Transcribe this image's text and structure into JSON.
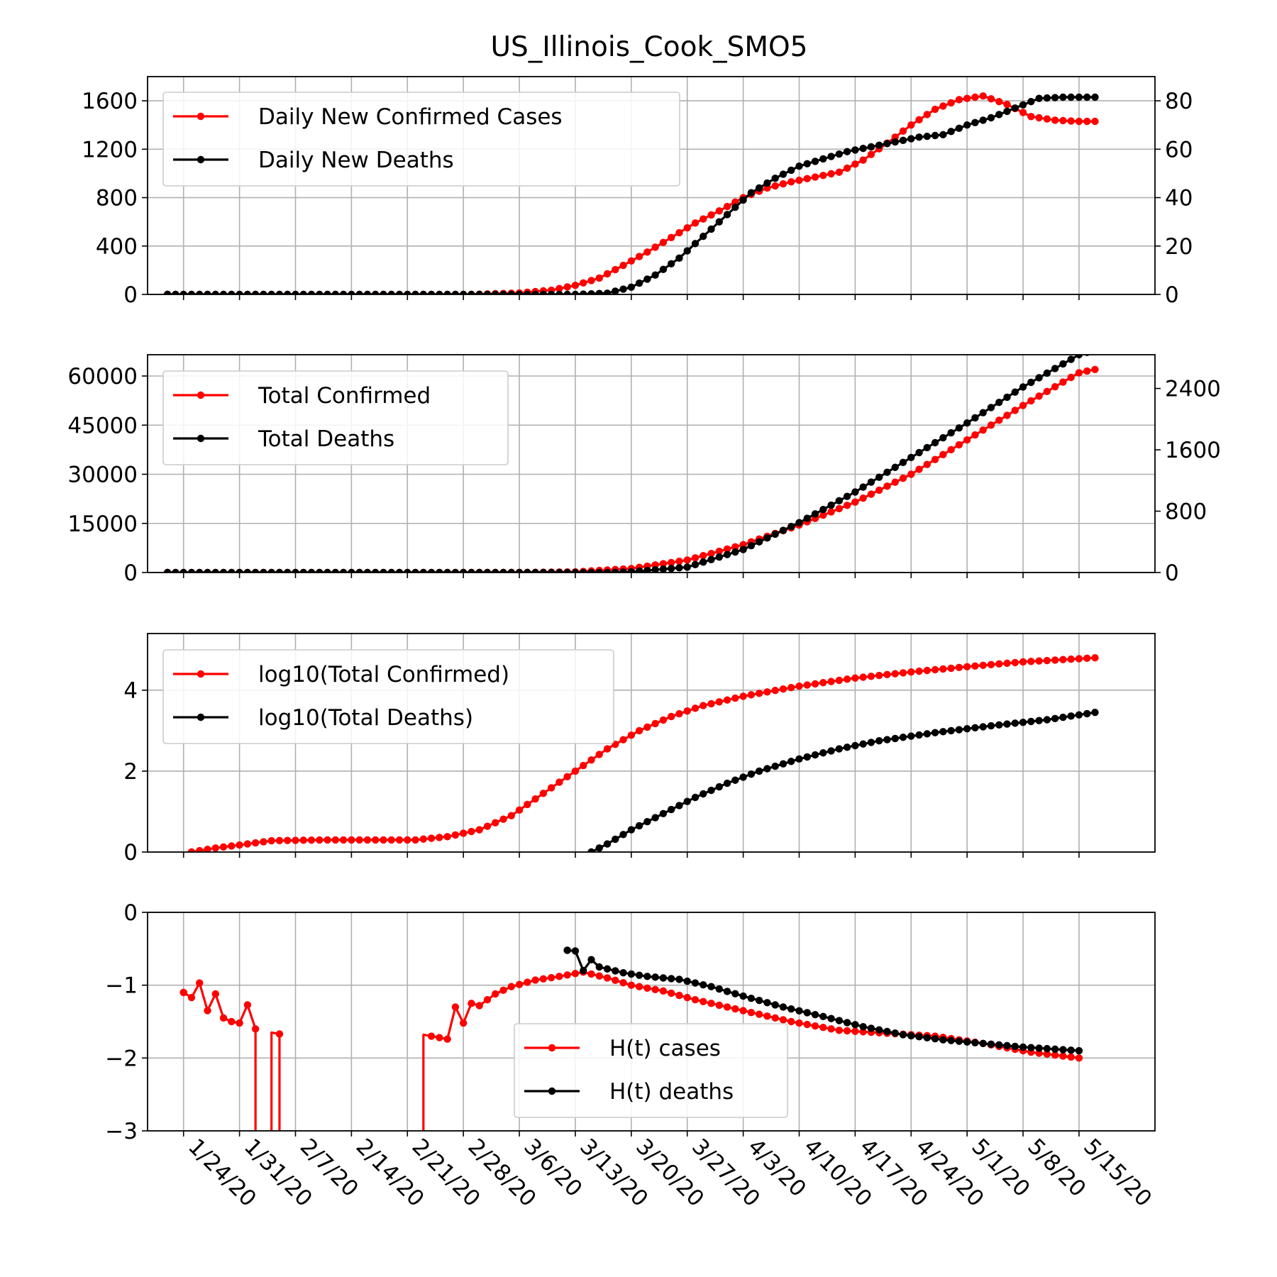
{
  "title": "US_Illinois_Cook_SMO5",
  "x_tick_labels": [
    "1/24/20",
    "1/31/20",
    "2/7/20",
    "2/14/20",
    "2/21/20",
    "2/28/20",
    "3/6/20",
    "3/13/20",
    "3/20/20",
    "3/27/20",
    "4/3/20",
    "4/10/20",
    "4/17/20",
    "4/24/20",
    "5/1/20",
    "5/8/20",
    "5/15/20"
  ],
  "colors": {
    "cases": "#ff0000",
    "deaths": "#000000",
    "grid": "#b0b0b0"
  },
  "chart_data": [
    {
      "type": "line",
      "x_start_date": "1/22/20",
      "x_end_date": "5/17/20",
      "legend_position": "upper-left",
      "grid": true,
      "left_axis": {
        "ylim": [
          0,
          1800
        ],
        "ticks": [
          0,
          400,
          800,
          1200,
          1600
        ],
        "tick_labels": [
          "0",
          "400",
          "800",
          "1200",
          "1600"
        ]
      },
      "right_axis": {
        "ylim": [
          0,
          90
        ],
        "ticks": [
          0,
          20,
          40,
          60,
          80
        ],
        "tick_labels": [
          "0",
          "20",
          "40",
          "60",
          "80"
        ]
      },
      "series": [
        {
          "name": "Daily New Confirmed Cases",
          "color": "#ff0000",
          "axis": "left",
          "points": [
            [
              "1/22/20",
              0
            ],
            [
              "2/29/20",
              0
            ],
            [
              "3/6/20",
              12
            ],
            [
              "3/10/20",
              35
            ],
            [
              "3/13/20",
              75
            ],
            [
              "3/16/20",
              135
            ],
            [
              "3/19/20",
              240
            ],
            [
              "3/22/20",
              350
            ],
            [
              "3/25/20",
              470
            ],
            [
              "3/28/20",
              590
            ],
            [
              "3/31/20",
              690
            ],
            [
              "4/3/20",
              800
            ],
            [
              "4/6/20",
              880
            ],
            [
              "4/9/20",
              930
            ],
            [
              "4/12/20",
              970
            ],
            [
              "4/15/20",
              1010
            ],
            [
              "4/18/20",
              1110
            ],
            [
              "4/21/20",
              1250
            ],
            [
              "4/24/20",
              1400
            ],
            [
              "4/27/20",
              1530
            ],
            [
              "4/30/20",
              1610
            ],
            [
              "5/3/20",
              1640
            ],
            [
              "5/6/20",
              1570
            ],
            [
              "5/9/20",
              1470
            ],
            [
              "5/12/20",
              1440
            ],
            [
              "5/15/20",
              1430
            ],
            [
              "5/17/20",
              1430
            ]
          ]
        },
        {
          "name": "Daily New Deaths",
          "color": "#000000",
          "axis": "right",
          "points": [
            [
              "1/22/20",
              0
            ],
            [
              "3/13/20",
              0
            ],
            [
              "3/17/20",
              0.5
            ],
            [
              "3/20/20",
              3
            ],
            [
              "3/23/20",
              8
            ],
            [
              "3/26/20",
              15
            ],
            [
              "3/29/20",
              24
            ],
            [
              "4/1/20",
              33
            ],
            [
              "4/4/20",
              42
            ],
            [
              "4/7/20",
              48
            ],
            [
              "4/10/20",
              53
            ],
            [
              "4/13/20",
              56
            ],
            [
              "4/16/20",
              59
            ],
            [
              "4/19/20",
              61
            ],
            [
              "4/22/20",
              63
            ],
            [
              "4/25/20",
              65
            ],
            [
              "4/28/20",
              66
            ],
            [
              "5/1/20",
              70
            ],
            [
              "5/4/20",
              73
            ],
            [
              "5/7/20",
              77
            ],
            [
              "5/10/20",
              81
            ],
            [
              "5/13/20",
              81.5
            ],
            [
              "5/17/20",
              81.5
            ]
          ]
        }
      ]
    },
    {
      "type": "line",
      "x_start_date": "1/22/20",
      "x_end_date": "5/17/20",
      "legend_position": "upper-left",
      "grid": true,
      "left_axis": {
        "ylim": [
          0,
          66500
        ],
        "ticks": [
          0,
          15000,
          30000,
          45000,
          60000
        ],
        "tick_labels": [
          "0",
          "15000",
          "30000",
          "45000",
          "60000"
        ]
      },
      "right_axis": {
        "ylim": [
          0,
          2840
        ],
        "ticks": [
          0,
          800,
          1600,
          2400
        ],
        "tick_labels": [
          "0",
          "800",
          "1600",
          "2400"
        ]
      },
      "series": [
        {
          "name": "Total Confirmed",
          "color": "#ff0000",
          "axis": "left",
          "points": [
            [
              "1/22/20",
              0
            ],
            [
              "3/6/20",
              30
            ],
            [
              "3/13/20",
              200
            ],
            [
              "3/20/20",
              1200
            ],
            [
              "3/27/20",
              3800
            ],
            [
              "4/3/20",
              8500
            ],
            [
              "4/10/20",
              14500
            ],
            [
              "4/17/20",
              21500
            ],
            [
              "4/24/20",
              30000
            ],
            [
              "5/1/20",
              40500
            ],
            [
              "5/8/20",
              51000
            ],
            [
              "5/15/20",
              61000
            ],
            [
              "5/17/20",
              62000
            ]
          ]
        },
        {
          "name": "Total Deaths",
          "color": "#000000",
          "axis": "right",
          "points": [
            [
              "1/22/20",
              0
            ],
            [
              "3/17/20",
              0
            ],
            [
              "3/20/20",
              10
            ],
            [
              "3/27/20",
              70
            ],
            [
              "4/3/20",
              300
            ],
            [
              "4/10/20",
              650
            ],
            [
              "4/17/20",
              1050
            ],
            [
              "4/24/20",
              1500
            ],
            [
              "5/1/20",
              1950
            ],
            [
              "5/8/20",
              2420
            ],
            [
              "5/15/20",
              2840
            ],
            [
              "5/17/20",
              2900
            ]
          ]
        }
      ]
    },
    {
      "type": "line",
      "x_start_date": "1/22/20",
      "x_end_date": "5/17/20",
      "legend_position": "upper-left",
      "grid": true,
      "left_axis": {
        "ylim": [
          0,
          5.4
        ],
        "ticks": [
          0,
          2,
          4
        ],
        "tick_labels": [
          "0",
          "2",
          "4"
        ]
      },
      "series": [
        {
          "name": "log10(Total Confirmed)",
          "color": "#ff0000",
          "axis": "left",
          "points": [
            [
              "1/25/20",
              0
            ],
            [
              "1/28/20",
              0.1
            ],
            [
              "2/1/20",
              0.2
            ],
            [
              "2/4/20",
              0.28
            ],
            [
              "2/11/20",
              0.3
            ],
            [
              "2/22/20",
              0.3
            ],
            [
              "2/26/20",
              0.38
            ],
            [
              "3/1/20",
              0.55
            ],
            [
              "3/5/20",
              0.9
            ],
            [
              "3/9/20",
              1.45
            ],
            [
              "3/13/20",
              2.0
            ],
            [
              "3/17/20",
              2.55
            ],
            [
              "3/21/20",
              3.0
            ],
            [
              "3/25/20",
              3.35
            ],
            [
              "3/29/20",
              3.62
            ],
            [
              "4/3/20",
              3.85
            ],
            [
              "4/10/20",
              4.1
            ],
            [
              "4/17/20",
              4.3
            ],
            [
              "4/24/20",
              4.45
            ],
            [
              "5/1/20",
              4.58
            ],
            [
              "5/8/20",
              4.7
            ],
            [
              "5/17/20",
              4.8
            ]
          ]
        },
        {
          "name": "log10(Total Deaths)",
          "color": "#000000",
          "axis": "left",
          "points": [
            [
              "3/15/20",
              0
            ],
            [
              "3/17/20",
              0.2
            ],
            [
              "3/20/20",
              0.55
            ],
            [
              "3/24/20",
              0.95
            ],
            [
              "3/28/20",
              1.35
            ],
            [
              "4/1/20",
              1.7
            ],
            [
              "4/5/20",
              2.0
            ],
            [
              "4/10/20",
              2.3
            ],
            [
              "4/15/20",
              2.55
            ],
            [
              "4/20/20",
              2.75
            ],
            [
              "4/27/20",
              2.95
            ],
            [
              "5/4/20",
              3.12
            ],
            [
              "5/11/20",
              3.27
            ],
            [
              "5/17/20",
              3.45
            ]
          ]
        }
      ]
    },
    {
      "type": "line",
      "x_start_date": "1/22/20",
      "x_end_date": "5/17/20",
      "legend_position": "lower-center",
      "grid": true,
      "left_axis": {
        "ylim": [
          -3,
          0
        ],
        "ticks": [
          -3,
          -2,
          -1,
          0
        ],
        "tick_labels": [
          "−3",
          "−2",
          "−1",
          "0"
        ]
      },
      "series": [
        {
          "name": "H(t) cases",
          "color": "#ff0000",
          "axis": "left",
          "segments": [
            [
              [
                "1/24/20",
                -1.1
              ],
              [
                "1/25/20",
                -1.17
              ],
              [
                "1/26/20",
                -0.97
              ],
              [
                "1/27/20",
                -1.35
              ],
              [
                "1/28/20",
                -1.12
              ],
              [
                "1/29/20",
                -1.45
              ],
              [
                "1/30/20",
                -1.5
              ],
              [
                "1/31/20",
                -1.52
              ],
              [
                "2/1/20",
                -1.27
              ],
              [
                "2/2/20",
                -1.6
              ],
              [
                "2/2/20",
                -3.2
              ]
            ],
            [
              [
                "2/4/20",
                -3.2
              ],
              [
                "2/4/20",
                -1.65
              ],
              [
                "2/5/20",
                -1.67
              ],
              [
                "2/5/20",
                -3.2
              ]
            ],
            [
              [
                "2/23/20",
                -3.2
              ],
              [
                "2/23/20",
                -1.68
              ],
              [
                "2/24/20",
                -1.7
              ],
              [
                "2/25/20",
                -1.72
              ],
              [
                "2/26/20",
                -1.74
              ],
              [
                "2/27/20",
                -1.3
              ],
              [
                "2/28/20",
                -1.52
              ],
              [
                "2/29/20",
                -1.25
              ],
              [
                "3/1/20",
                -1.28
              ],
              [
                "3/3/20",
                -1.12
              ],
              [
                "3/5/20",
                -1.02
              ],
              [
                "3/8/20",
                -0.93
              ],
              [
                "3/11/20",
                -0.88
              ],
              [
                "3/14/20",
                -0.82
              ],
              [
                "3/17/20",
                -0.9
              ],
              [
                "3/20/20",
                -1.0
              ],
              [
                "3/24/20",
                -1.08
              ],
              [
                "3/28/20",
                -1.2
              ],
              [
                "4/3/20",
                -1.35
              ],
              [
                "4/9/20",
                -1.5
              ],
              [
                "4/15/20",
                -1.62
              ],
              [
                "4/21/20",
                -1.66
              ],
              [
                "4/27/20",
                -1.7
              ],
              [
                "5/3/20",
                -1.8
              ],
              [
                "5/9/20",
                -1.92
              ],
              [
                "5/15/20",
                -2.0
              ]
            ]
          ]
        },
        {
          "name": "H(t) deaths",
          "color": "#000000",
          "axis": "left",
          "segments": [
            [
              [
                "3/12/20",
                -0.52
              ],
              [
                "3/13/20",
                -0.53
              ],
              [
                "3/14/20",
                -0.8
              ],
              [
                "3/15/20",
                -0.65
              ],
              [
                "3/16/20",
                -0.75
              ],
              [
                "3/19/20",
                -0.83
              ],
              [
                "3/22/20",
                -0.88
              ],
              [
                "3/26/20",
                -0.92
              ],
              [
                "3/30/20",
                -1.02
              ],
              [
                "4/3/20",
                -1.15
              ],
              [
                "4/8/20",
                -1.3
              ],
              [
                "4/13/20",
                -1.43
              ],
              [
                "4/18/20",
                -1.57
              ],
              [
                "4/23/20",
                -1.68
              ],
              [
                "4/28/20",
                -1.75
              ],
              [
                "5/3/20",
                -1.8
              ],
              [
                "5/8/20",
                -1.85
              ],
              [
                "5/15/20",
                -1.9
              ]
            ]
          ]
        }
      ]
    }
  ]
}
